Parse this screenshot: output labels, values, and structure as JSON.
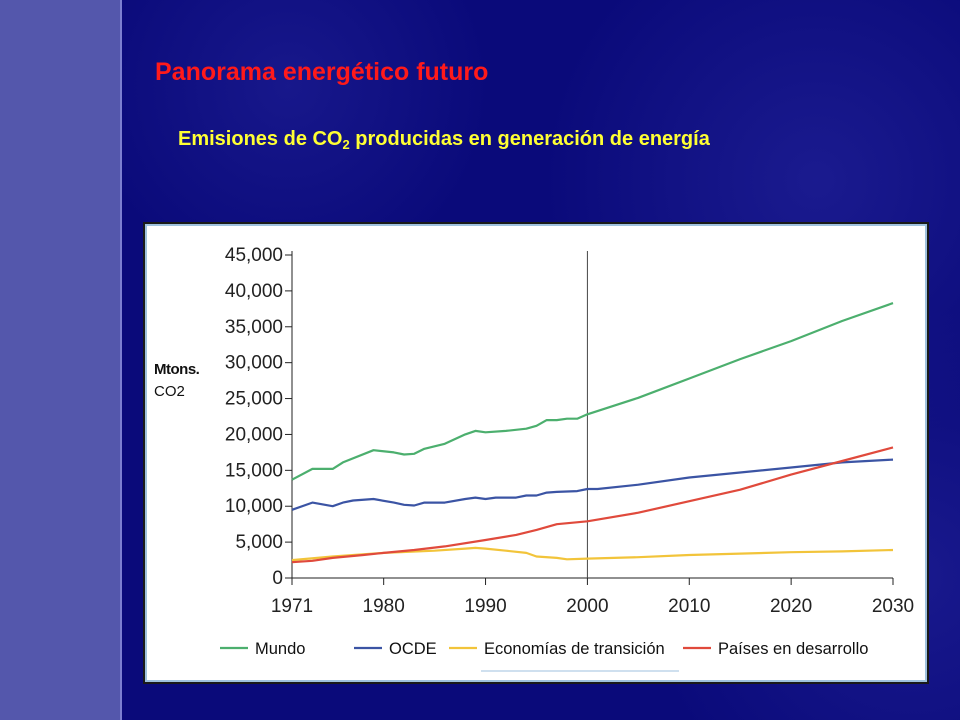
{
  "slide": {
    "title": "Panorama energético futuro",
    "subtitle_pre": "Emisiones de CO",
    "subtitle_sub": "2",
    "subtitle_post": " producidas en generación de energía",
    "colors": {
      "title": "#ff1a1a",
      "subtitle": "#ffff33",
      "background": "#0a0a78",
      "sidebar": "#5457ac"
    }
  },
  "chart_data": {
    "type": "line",
    "title": "",
    "xlabel": "",
    "ylabel_line1": "Mtons.",
    "ylabel_line2": "CO2",
    "xlim": [
      1971,
      2030
    ],
    "ylim": [
      0,
      45000
    ],
    "x_ticks": [
      "1971",
      "1980",
      "1990",
      "2000",
      "2010",
      "2020",
      "2030"
    ],
    "y_ticks": [
      "0",
      "5,000",
      "10,000",
      "15,000",
      "20,000",
      "25,000",
      "30,000",
      "35,000",
      "40,000",
      "45,000"
    ],
    "y_tick_values": [
      0,
      5000,
      10000,
      15000,
      20000,
      25000,
      30000,
      35000,
      40000,
      45000
    ],
    "x_tick_values": [
      1971,
      1980,
      1990,
      2000,
      2010,
      2020,
      2030
    ],
    "vertical_marker": 2000,
    "grid": false,
    "legend_position": "bottom",
    "series": [
      {
        "name": "Mundo",
        "color": "#4caf6e",
        "points": [
          [
            1971,
            13700
          ],
          [
            1973,
            15200
          ],
          [
            1975,
            15200
          ],
          [
            1976,
            16100
          ],
          [
            1979,
            17800
          ],
          [
            1981,
            17500
          ],
          [
            1982,
            17200
          ],
          [
            1983,
            17300
          ],
          [
            1984,
            18000
          ],
          [
            1986,
            18700
          ],
          [
            1988,
            20000
          ],
          [
            1989,
            20500
          ],
          [
            1990,
            20300
          ],
          [
            1992,
            20500
          ],
          [
            1994,
            20800
          ],
          [
            1995,
            21200
          ],
          [
            1996,
            22000
          ],
          [
            1997,
            22000
          ],
          [
            1998,
            22200
          ],
          [
            1999,
            22200
          ],
          [
            2000,
            22800
          ],
          [
            2005,
            25100
          ],
          [
            2010,
            27800
          ],
          [
            2015,
            30500
          ],
          [
            2020,
            33000
          ],
          [
            2025,
            35800
          ],
          [
            2030,
            38300
          ]
        ]
      },
      {
        "name": "OCDE",
        "color": "#3b54a4",
        "points": [
          [
            1971,
            9500
          ],
          [
            1973,
            10500
          ],
          [
            1975,
            10000
          ],
          [
            1976,
            10500
          ],
          [
            1977,
            10800
          ],
          [
            1979,
            11000
          ],
          [
            1981,
            10500
          ],
          [
            1982,
            10200
          ],
          [
            1983,
            10100
          ],
          [
            1984,
            10500
          ],
          [
            1986,
            10500
          ],
          [
            1988,
            11000
          ],
          [
            1989,
            11200
          ],
          [
            1990,
            11000
          ],
          [
            1991,
            11200
          ],
          [
            1993,
            11200
          ],
          [
            1994,
            11500
          ],
          [
            1995,
            11500
          ],
          [
            1996,
            11900
          ],
          [
            1997,
            12000
          ],
          [
            1999,
            12100
          ],
          [
            2000,
            12400
          ],
          [
            2001,
            12400
          ],
          [
            2005,
            13000
          ],
          [
            2010,
            14000
          ],
          [
            2015,
            14700
          ],
          [
            2020,
            15400
          ],
          [
            2025,
            16100
          ],
          [
            2030,
            16500
          ]
        ]
      },
      {
        "name": "Economías de transición",
        "color": "#f2c43a",
        "points": [
          [
            1971,
            2500
          ],
          [
            1975,
            3000
          ],
          [
            1980,
            3500
          ],
          [
            1985,
            3800
          ],
          [
            1988,
            4100
          ],
          [
            1989,
            4200
          ],
          [
            1990,
            4100
          ],
          [
            1992,
            3800
          ],
          [
            1994,
            3500
          ],
          [
            1995,
            3000
          ],
          [
            1997,
            2800
          ],
          [
            1998,
            2600
          ],
          [
            2000,
            2700
          ],
          [
            2005,
            2900
          ],
          [
            2010,
            3200
          ],
          [
            2015,
            3400
          ],
          [
            2020,
            3600
          ],
          [
            2025,
            3700
          ],
          [
            2030,
            3900
          ]
        ]
      },
      {
        "name": "Países en desarrollo",
        "color": "#e04a3c",
        "points": [
          [
            1971,
            2200
          ],
          [
            1973,
            2400
          ],
          [
            1975,
            2800
          ],
          [
            1978,
            3200
          ],
          [
            1980,
            3500
          ],
          [
            1983,
            3900
          ],
          [
            1986,
            4400
          ],
          [
            1990,
            5300
          ],
          [
            1993,
            6000
          ],
          [
            1995,
            6700
          ],
          [
            1997,
            7500
          ],
          [
            2000,
            7900
          ],
          [
            2005,
            9100
          ],
          [
            2010,
            10700
          ],
          [
            2015,
            12300
          ],
          [
            2020,
            14400
          ],
          [
            2025,
            16300
          ],
          [
            2030,
            18200
          ]
        ]
      }
    ]
  }
}
